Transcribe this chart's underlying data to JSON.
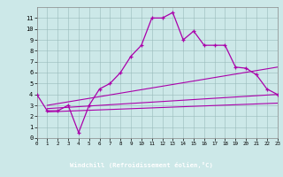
{
  "bg_color": "#cce8e8",
  "line_color": "#aa00aa",
  "label_bar_color": "#660066",
  "label_text": "Windchill (Refroidissement éolien,°C)",
  "label_text_color": "#ffffff",
  "xlim": [
    0,
    23
  ],
  "ylim": [
    0,
    12
  ],
  "xticks": [
    0,
    1,
    2,
    3,
    4,
    5,
    6,
    7,
    8,
    9,
    10,
    11,
    12,
    13,
    14,
    15,
    16,
    17,
    18,
    19,
    20,
    21,
    22,
    23
  ],
  "yticks": [
    0,
    1,
    2,
    3,
    4,
    5,
    6,
    7,
    8,
    9,
    10,
    11
  ],
  "line1_x": [
    0,
    1,
    2,
    3,
    4,
    5,
    6,
    7,
    8,
    9,
    10,
    11,
    12,
    13,
    14,
    15,
    16,
    17,
    18,
    19,
    20,
    21,
    22,
    23
  ],
  "line1_y": [
    4.0,
    2.5,
    2.5,
    3.0,
    0.5,
    3.0,
    4.5,
    5.0,
    6.0,
    7.5,
    8.5,
    11.0,
    11.0,
    11.5,
    9.0,
    9.8,
    8.5,
    8.5,
    8.5,
    6.5,
    6.4,
    5.8,
    4.5,
    4.0
  ],
  "line2_x": [
    1,
    23
  ],
  "line2_y": [
    3.0,
    6.5
  ],
  "line3_x": [
    1,
    23
  ],
  "line3_y": [
    2.7,
    4.0
  ],
  "line4_x": [
    1,
    23
  ],
  "line4_y": [
    2.4,
    3.2
  ]
}
